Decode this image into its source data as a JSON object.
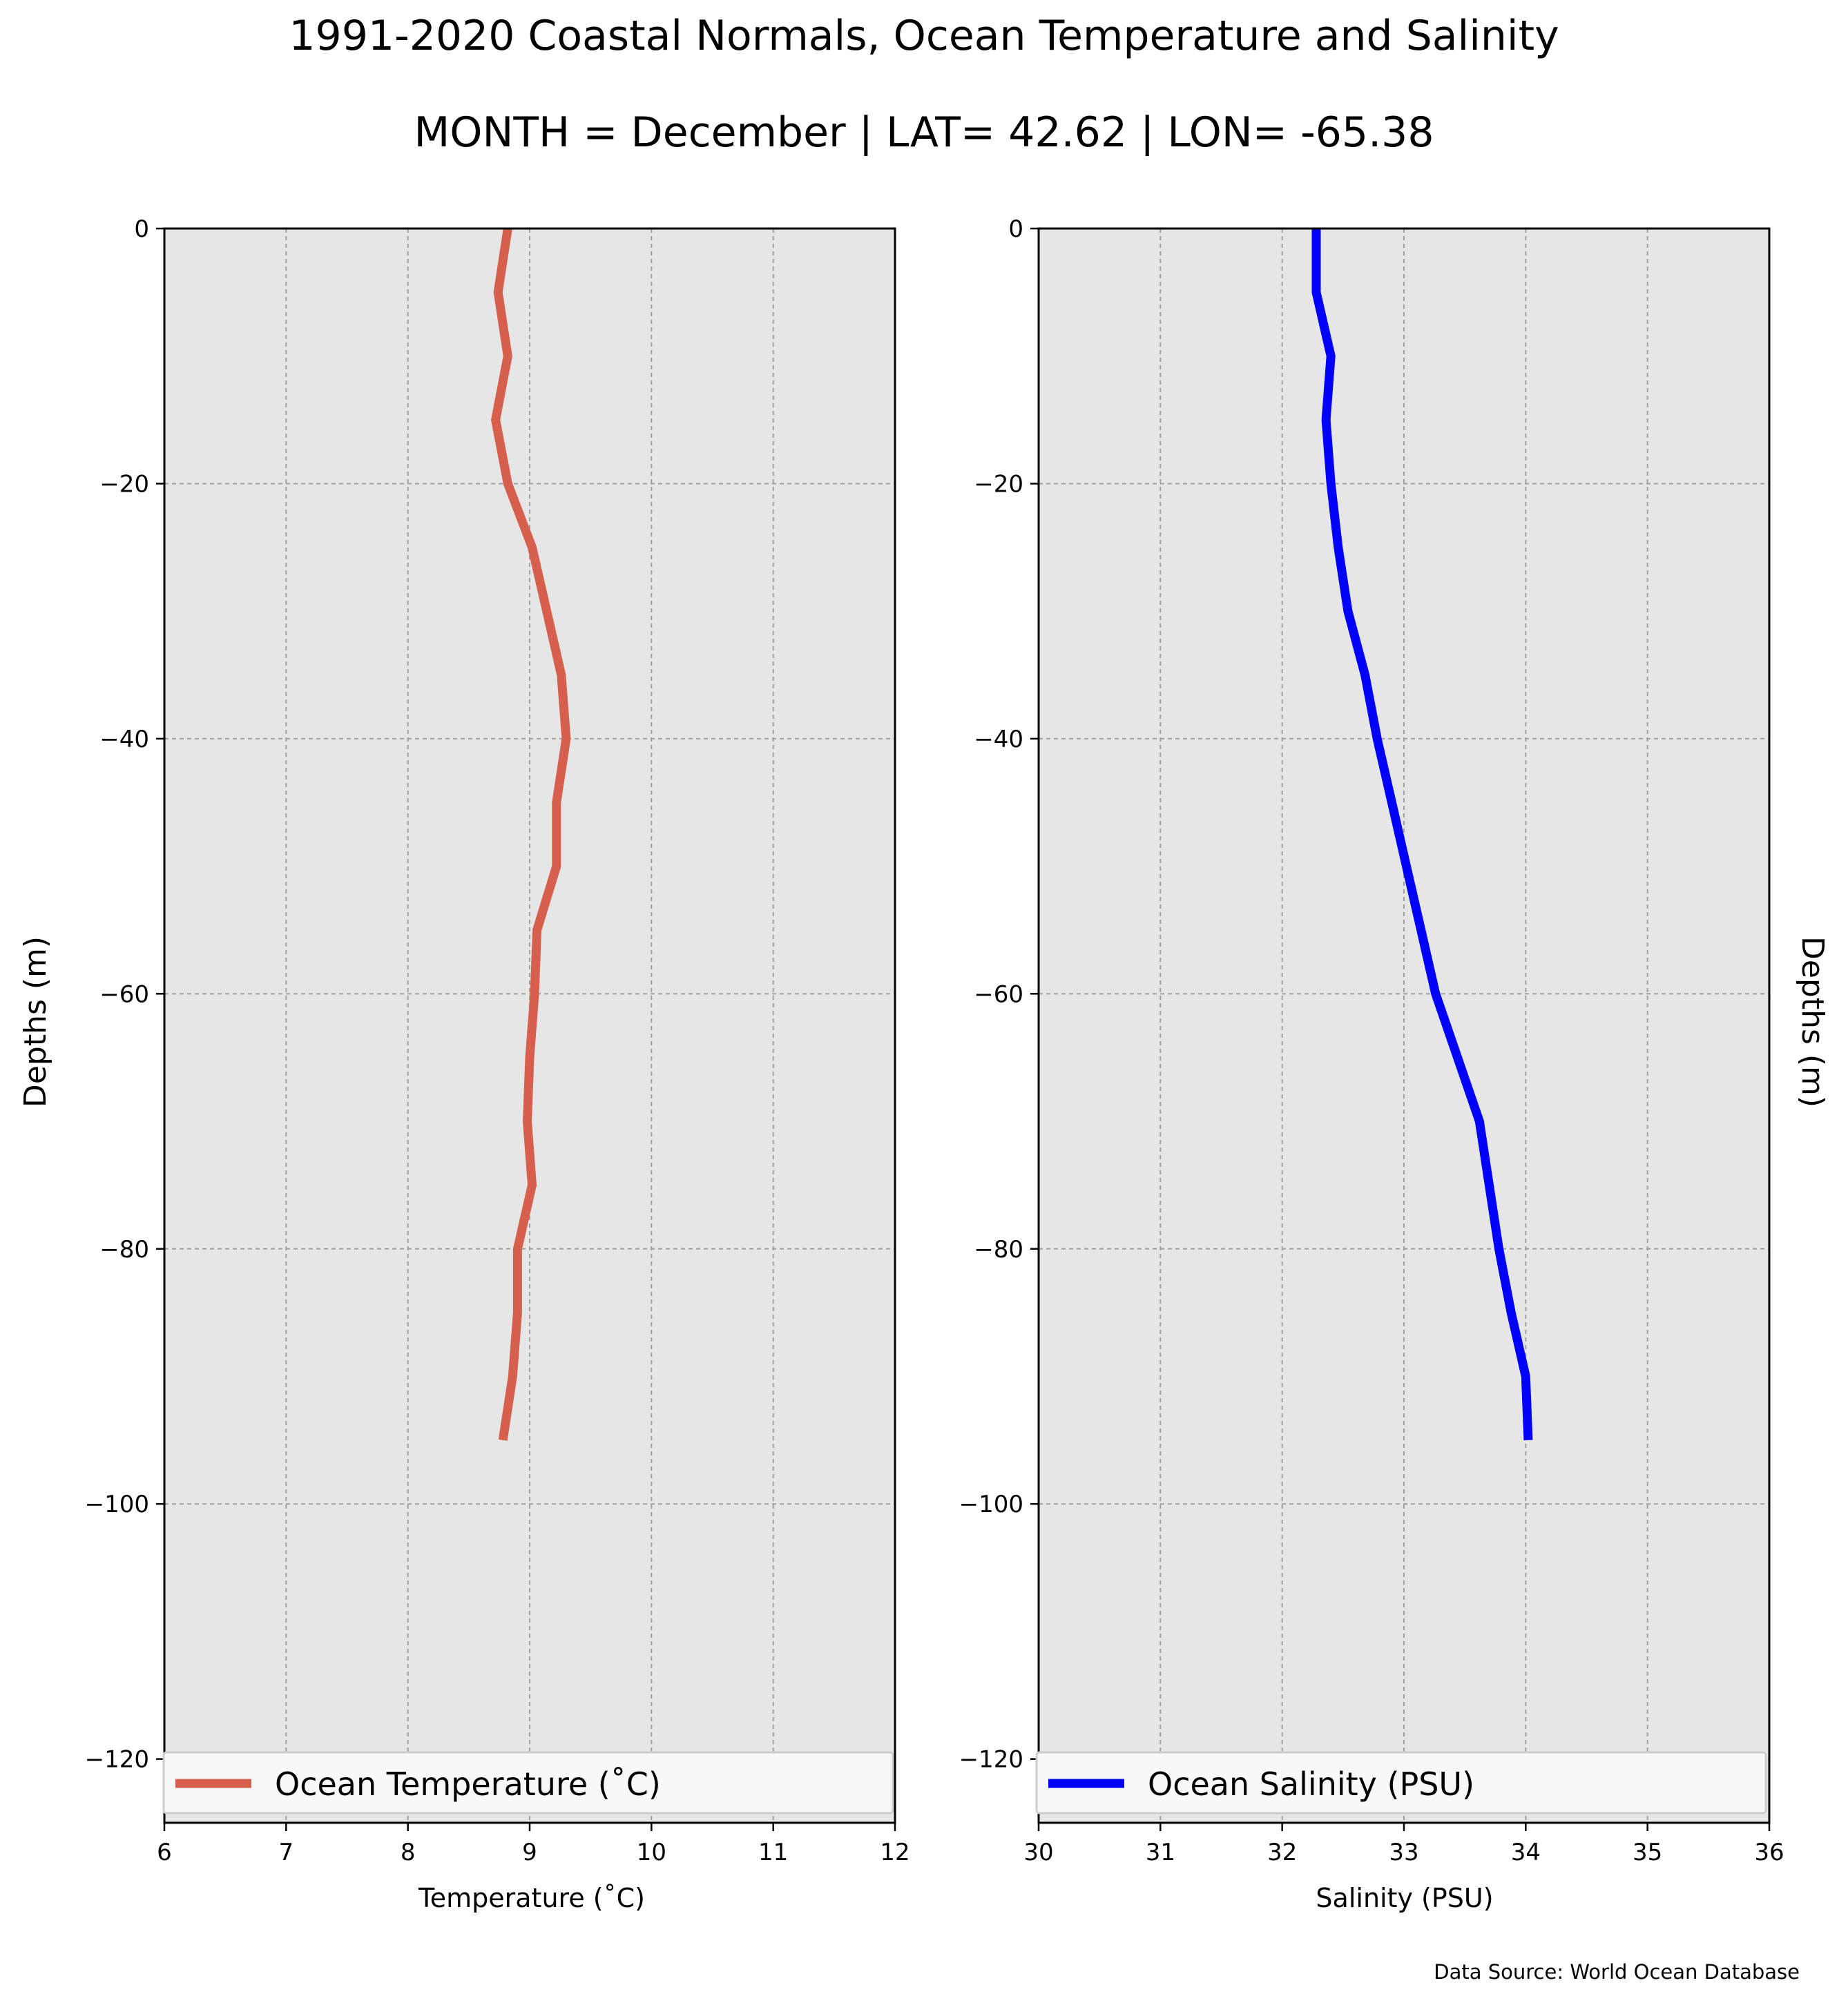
{
  "figure": {
    "title": "1991-2020 Coastal Normals, Ocean Temperature and Salinity",
    "subtitle": "MONTH = December | LAT= 42.62 | LON= -65.38",
    "source": "Data Source: World Ocean Database",
    "left_ylabel": "Depths (m)",
    "right_ylabel": "Depths (m)",
    "panel_bg": "#e6e6e6",
    "grid_color": "#a0a0a0"
  },
  "chart_data": [
    {
      "type": "line",
      "xlabel": "Temperature ($^\\circ$C)",
      "xlabel_display": "Temperature (˚C)",
      "ylabel": "Depths (m)",
      "xlim": [
        6,
        12
      ],
      "ylim": [
        -125,
        0
      ],
      "xticks": [
        "6",
        "7",
        "8",
        "9",
        "10",
        "11",
        "12"
      ],
      "yticks": [
        "0",
        "−20",
        "−40",
        "−60",
        "−80",
        "−100",
        "−120"
      ],
      "grid": true,
      "legend_position": "lower-center",
      "series": [
        {
          "name": "Ocean Temperature ($^\\circ$C)",
          "display_name": "Ocean Temperature (˚C)",
          "color": "#d65f4e",
          "points": [
            {
              "x": 8.82,
              "y": 0
            },
            {
              "x": 8.74,
              "y": -5
            },
            {
              "x": 8.82,
              "y": -10
            },
            {
              "x": 8.72,
              "y": -15
            },
            {
              "x": 8.82,
              "y": -20
            },
            {
              "x": 9.02,
              "y": -25
            },
            {
              "x": 9.14,
              "y": -30
            },
            {
              "x": 9.26,
              "y": -35
            },
            {
              "x": 9.3,
              "y": -40
            },
            {
              "x": 9.22,
              "y": -45
            },
            {
              "x": 9.22,
              "y": -50
            },
            {
              "x": 9.06,
              "y": -55
            },
            {
              "x": 9.04,
              "y": -60
            },
            {
              "x": 9.0,
              "y": -65
            },
            {
              "x": 8.98,
              "y": -70
            },
            {
              "x": 9.02,
              "y": -75
            },
            {
              "x": 8.9,
              "y": -80
            },
            {
              "x": 8.9,
              "y": -85
            },
            {
              "x": 8.86,
              "y": -90
            },
            {
              "x": 8.78,
              "y": -95
            }
          ]
        }
      ]
    },
    {
      "type": "line",
      "xlabel": "Salinity (PSU)",
      "ylabel": "Depths (m)",
      "xlim": [
        30,
        36
      ],
      "ylim": [
        -125,
        0
      ],
      "xticks": [
        "30",
        "31",
        "32",
        "33",
        "34",
        "35",
        "36"
      ],
      "yticks": [
        "0",
        "−20",
        "−40",
        "−60",
        "−80",
        "−100",
        "−120"
      ],
      "grid": true,
      "legend_position": "lower-center",
      "series": [
        {
          "name": "Ocean Salinity (PSU)",
          "color": "#0000ff",
          "points": [
            {
              "x": 32.28,
              "y": 0
            },
            {
              "x": 32.28,
              "y": -5
            },
            {
              "x": 32.4,
              "y": -10
            },
            {
              "x": 32.36,
              "y": -15
            },
            {
              "x": 32.4,
              "y": -20
            },
            {
              "x": 32.46,
              "y": -25
            },
            {
              "x": 32.54,
              "y": -30
            },
            {
              "x": 32.68,
              "y": -35
            },
            {
              "x": 32.78,
              "y": -40
            },
            {
              "x": 32.9,
              "y": -45
            },
            {
              "x": 33.02,
              "y": -50
            },
            {
              "x": 33.14,
              "y": -55
            },
            {
              "x": 33.26,
              "y": -60
            },
            {
              "x": 33.44,
              "y": -65
            },
            {
              "x": 33.62,
              "y": -70
            },
            {
              "x": 33.7,
              "y": -75
            },
            {
              "x": 33.78,
              "y": -80
            },
            {
              "x": 33.88,
              "y": -85
            },
            {
              "x": 34.0,
              "y": -90
            },
            {
              "x": 34.02,
              "y": -95
            }
          ]
        }
      ]
    }
  ]
}
